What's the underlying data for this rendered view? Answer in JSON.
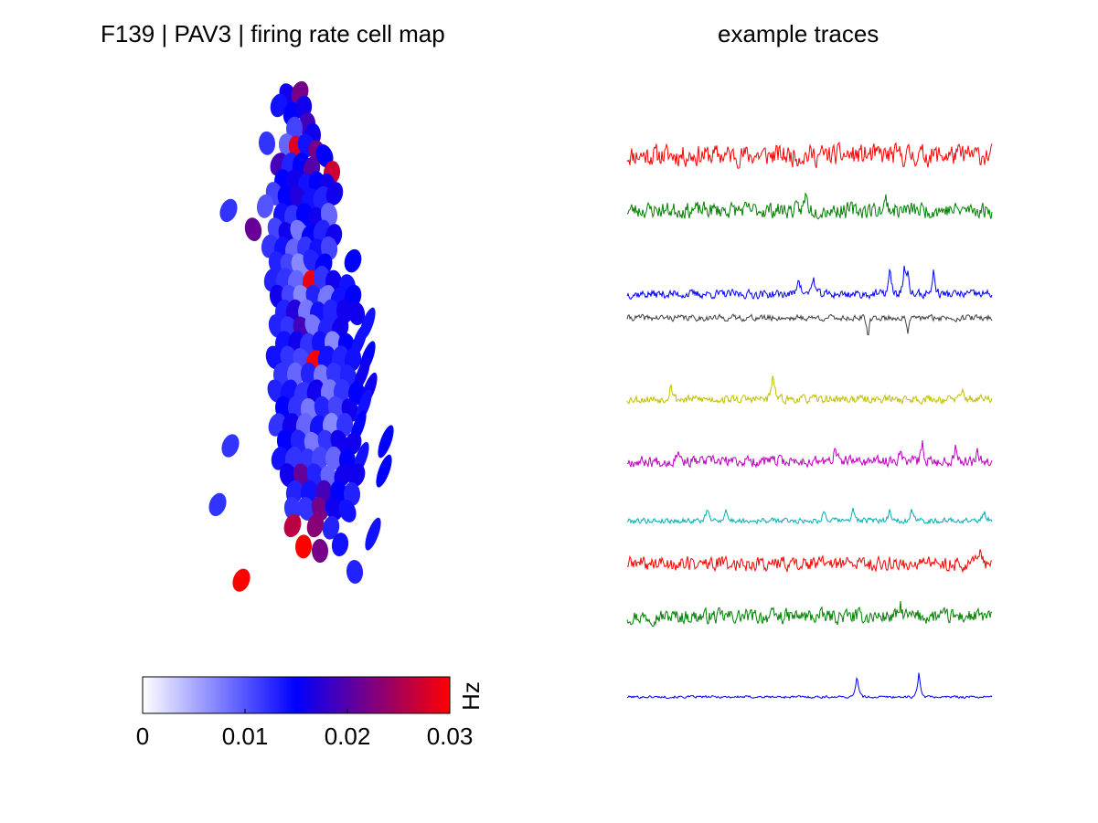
{
  "chart_data": [
    {
      "type": "heatmap",
      "title": "F139 | PAV3 | firing rate cell map",
      "colorbar": {
        "label": "Hz",
        "range": [
          0,
          0.03
        ],
        "ticks": [
          "0",
          "0.01",
          "0.02",
          "0.03"
        ],
        "colors": [
          "#ffffff",
          "#0000ff",
          "#ff0000"
        ]
      },
      "cells": [
        {
          "x": 0.15,
          "y": 0.03,
          "rate": 0.016
        },
        {
          "x": 0.28,
          "y": 0.02,
          "rate": 0.022
        },
        {
          "x": 0.05,
          "y": 0.08,
          "rate": 0.014
        },
        {
          "x": 0.19,
          "y": 0.12,
          "rate": 0.015
        },
        {
          "x": 0.32,
          "y": 0.09,
          "rate": 0.016
        },
        {
          "x": 0.36,
          "y": 0.17,
          "rate": 0.019
        },
        {
          "x": 0.22,
          "y": 0.19,
          "rate": 0.011
        },
        {
          "x": 0.42,
          "y": 0.22,
          "rate": 0.016
        },
        {
          "x": -0.08,
          "y": 0.26,
          "rate": 0.012
        },
        {
          "x": 0.14,
          "y": 0.27,
          "rate": 0.009
        },
        {
          "x": 0.25,
          "y": 0.28,
          "rate": 0.028
        },
        {
          "x": 0.35,
          "y": 0.27,
          "rate": 0.014
        },
        {
          "x": 0.47,
          "y": 0.3,
          "rate": 0.022
        },
        {
          "x": 0.55,
          "y": 0.32,
          "rate": 0.015
        },
        {
          "x": 0.05,
          "y": 0.36,
          "rate": 0.019
        },
        {
          "x": 0.17,
          "y": 0.36,
          "rate": 0.013
        },
        {
          "x": 0.29,
          "y": 0.36,
          "rate": 0.015
        },
        {
          "x": 0.41,
          "y": 0.38,
          "rate": 0.02
        },
        {
          "x": 0.63,
          "y": 0.4,
          "rate": 0.027
        },
        {
          "x": 0.09,
          "y": 0.44,
          "rate": 0.015
        },
        {
          "x": 0.22,
          "y": 0.44,
          "rate": 0.016
        },
        {
          "x": 0.35,
          "y": 0.46,
          "rate": 0.014
        },
        {
          "x": 0.47,
          "y": 0.45,
          "rate": 0.015
        },
        {
          "x": 0.58,
          "y": 0.46,
          "rate": 0.016
        },
        {
          "x": 0.0,
          "y": 0.5,
          "rate": 0.011
        },
        {
          "x": 0.13,
          "y": 0.52,
          "rate": 0.015
        },
        {
          "x": 0.26,
          "y": 0.52,
          "rate": 0.017
        },
        {
          "x": 0.39,
          "y": 0.53,
          "rate": 0.014
        },
        {
          "x": 0.52,
          "y": 0.52,
          "rate": 0.013
        },
        {
          "x": 0.66,
          "y": 0.5,
          "rate": 0.016
        },
        {
          "x": -0.5,
          "y": 0.58,
          "rate": 0.012
        },
        {
          "x": -0.1,
          "y": 0.56,
          "rate": 0.01
        },
        {
          "x": 0.08,
          "y": 0.6,
          "rate": 0.014
        },
        {
          "x": 0.2,
          "y": 0.61,
          "rate": 0.012
        },
        {
          "x": 0.33,
          "y": 0.6,
          "rate": 0.015
        },
        {
          "x": 0.46,
          "y": 0.62,
          "rate": 0.016
        },
        {
          "x": 0.6,
          "y": 0.6,
          "rate": 0.009
        },
        {
          "x": -0.23,
          "y": 0.67,
          "rate": 0.021
        },
        {
          "x": 0.02,
          "y": 0.67,
          "rate": 0.011
        },
        {
          "x": 0.14,
          "y": 0.69,
          "rate": 0.016
        },
        {
          "x": 0.27,
          "y": 0.68,
          "rate": 0.008
        },
        {
          "x": 0.39,
          "y": 0.7,
          "rate": 0.015
        },
        {
          "x": 0.52,
          "y": 0.68,
          "rate": 0.013
        },
        {
          "x": 0.65,
          "y": 0.7,
          "rate": 0.016
        },
        {
          "x": -0.05,
          "y": 0.75,
          "rate": 0.012
        },
        {
          "x": 0.09,
          "y": 0.76,
          "rate": 0.014
        },
        {
          "x": 0.21,
          "y": 0.77,
          "rate": 0.009
        },
        {
          "x": 0.34,
          "y": 0.76,
          "rate": 0.012
        },
        {
          "x": 0.47,
          "y": 0.77,
          "rate": 0.014
        },
        {
          "x": 0.6,
          "y": 0.76,
          "rate": 0.011
        },
        {
          "x": 0.03,
          "y": 0.83,
          "rate": 0.013
        },
        {
          "x": 0.16,
          "y": 0.84,
          "rate": 0.011
        },
        {
          "x": 0.28,
          "y": 0.84,
          "rate": 0.007
        },
        {
          "x": 0.41,
          "y": 0.82,
          "rate": 0.013
        },
        {
          "x": 0.54,
          "y": 0.84,
          "rate": 0.015
        },
        {
          "x": 0.86,
          "y": 0.82,
          "rate": 0.015
        },
        {
          "x": -0.02,
          "y": 0.91,
          "rate": 0.013
        },
        {
          "x": 0.11,
          "y": 0.91,
          "rate": 0.012
        },
        {
          "x": 0.24,
          "y": 0.92,
          "rate": 0.009
        },
        {
          "x": 0.4,
          "y": 0.92,
          "rate": 0.029
        },
        {
          "x": 0.52,
          "y": 0.9,
          "rate": 0.012
        },
        {
          "x": 0.65,
          "y": 0.92,
          "rate": 0.016
        },
        {
          "x": 0.8,
          "y": 0.94,
          "rate": 0.014
        },
        {
          "x": 0.04,
          "y": 0.99,
          "rate": 0.016
        },
        {
          "x": 0.17,
          "y": 0.99,
          "rate": 0.011
        },
        {
          "x": 0.3,
          "y": 0.99,
          "rate": 0.007
        },
        {
          "x": 0.44,
          "y": 0.99,
          "rate": 0.013
        },
        {
          "x": 0.57,
          "y": 0.99,
          "rate": 0.008
        },
        {
          "x": 0.71,
          "y": 1.0,
          "rate": 0.014
        },
        {
          "x": 0.86,
          "y": 0.99,
          "rate": 0.015
        },
        {
          "x": 0.1,
          "y": 1.06,
          "rate": 0.013
        },
        {
          "x": 0.22,
          "y": 1.06,
          "rate": 0.017
        },
        {
          "x": 0.35,
          "y": 1.06,
          "rate": 0.008
        },
        {
          "x": 0.48,
          "y": 1.07,
          "rate": 0.014
        },
        {
          "x": 0.62,
          "y": 1.06,
          "rate": 0.013
        },
        {
          "x": 0.77,
          "y": 1.06,
          "rate": 0.016
        },
        {
          "x": 0.9,
          "y": 1.07,
          "rate": 0.016
        },
        {
          "x": 0.03,
          "y": 1.13,
          "rate": 0.013
        },
        {
          "x": 0.16,
          "y": 1.14,
          "rate": 0.012
        },
        {
          "x": 0.3,
          "y": 1.14,
          "rate": 0.019
        },
        {
          "x": 0.43,
          "y": 1.13,
          "rate": 0.008
        },
        {
          "x": 0.57,
          "y": 1.14,
          "rate": 0.013
        },
        {
          "x": 0.72,
          "y": 1.14,
          "rate": 0.016
        },
        {
          "x": 1.02,
          "y": 1.12,
          "rate": 0.014
        },
        {
          "x": 0.1,
          "y": 1.21,
          "rate": 0.014
        },
        {
          "x": 0.24,
          "y": 1.21,
          "rate": 0.016
        },
        {
          "x": 0.37,
          "y": 1.22,
          "rate": 0.012
        },
        {
          "x": 0.5,
          "y": 1.21,
          "rate": 0.014
        },
        {
          "x": 0.64,
          "y": 1.21,
          "rate": 0.007
        },
        {
          "x": 0.79,
          "y": 1.22,
          "rate": 0.015
        },
        {
          "x": 0.93,
          "y": 1.2,
          "rate": 0.014
        },
        {
          "x": 0.0,
          "y": 1.28,
          "rate": 0.014
        },
        {
          "x": 0.16,
          "y": 1.28,
          "rate": 0.012
        },
        {
          "x": 0.3,
          "y": 1.29,
          "rate": 0.011
        },
        {
          "x": 0.44,
          "y": 1.3,
          "rate": 0.03
        },
        {
          "x": 0.57,
          "y": 1.28,
          "rate": 0.014
        },
        {
          "x": 0.72,
          "y": 1.28,
          "rate": 0.013
        },
        {
          "x": 0.86,
          "y": 1.29,
          "rate": 0.014
        },
        {
          "x": 1.02,
          "y": 1.28,
          "rate": 0.015
        },
        {
          "x": 0.08,
          "y": 1.36,
          "rate": 0.012
        },
        {
          "x": 0.23,
          "y": 1.36,
          "rate": 0.009
        },
        {
          "x": 0.38,
          "y": 1.36,
          "rate": 0.013
        },
        {
          "x": 0.52,
          "y": 1.37,
          "rate": 0.008
        },
        {
          "x": 0.66,
          "y": 1.36,
          "rate": 0.012
        },
        {
          "x": 0.81,
          "y": 1.37,
          "rate": 0.013
        },
        {
          "x": 0.96,
          "y": 1.36,
          "rate": 0.016
        },
        {
          "x": 0.02,
          "y": 1.44,
          "rate": 0.013
        },
        {
          "x": 0.16,
          "y": 1.44,
          "rate": 0.014
        },
        {
          "x": 0.31,
          "y": 1.45,
          "rate": 0.012
        },
        {
          "x": 0.45,
          "y": 1.44,
          "rate": 0.016
        },
        {
          "x": 0.6,
          "y": 1.44,
          "rate": 0.008
        },
        {
          "x": 0.74,
          "y": 1.44,
          "rate": 0.012
        },
        {
          "x": 0.9,
          "y": 1.45,
          "rate": 0.015
        },
        {
          "x": 1.04,
          "y": 1.43,
          "rate": 0.016
        },
        {
          "x": 0.1,
          "y": 1.52,
          "rate": 0.015
        },
        {
          "x": 0.24,
          "y": 1.52,
          "rate": 0.012
        },
        {
          "x": 0.38,
          "y": 1.53,
          "rate": 0.008
        },
        {
          "x": 0.53,
          "y": 1.52,
          "rate": 0.013
        },
        {
          "x": 0.68,
          "y": 1.52,
          "rate": 0.011
        },
        {
          "x": 0.83,
          "y": 1.53,
          "rate": 0.016
        },
        {
          "x": 0.98,
          "y": 1.51,
          "rate": 0.014
        },
        {
          "x": 0.03,
          "y": 1.6,
          "rate": 0.012
        },
        {
          "x": 0.18,
          "y": 1.6,
          "rate": 0.016
        },
        {
          "x": 0.33,
          "y": 1.6,
          "rate": 0.009
        },
        {
          "x": 0.48,
          "y": 1.61,
          "rate": 0.014
        },
        {
          "x": 0.62,
          "y": 1.6,
          "rate": 0.007
        },
        {
          "x": 0.77,
          "y": 1.6,
          "rate": 0.012
        },
        {
          "x": 0.92,
          "y": 1.61,
          "rate": 0.015
        },
        {
          "x": -0.48,
          "y": 1.7,
          "rate": 0.012
        },
        {
          "x": 0.12,
          "y": 1.68,
          "rate": 0.015
        },
        {
          "x": 0.27,
          "y": 1.68,
          "rate": 0.013
        },
        {
          "x": 0.42,
          "y": 1.69,
          "rate": 0.008
        },
        {
          "x": 0.57,
          "y": 1.68,
          "rate": 0.012
        },
        {
          "x": 0.71,
          "y": 1.68,
          "rate": 0.016
        },
        {
          "x": 0.86,
          "y": 1.69,
          "rate": 0.016
        },
        {
          "x": 1.22,
          "y": 1.68,
          "rate": 0.015
        },
        {
          "x": 0.06,
          "y": 1.76,
          "rate": 0.014
        },
        {
          "x": 0.21,
          "y": 1.76,
          "rate": 0.012
        },
        {
          "x": 0.36,
          "y": 1.77,
          "rate": 0.012
        },
        {
          "x": 0.5,
          "y": 1.76,
          "rate": 0.011
        },
        {
          "x": 0.65,
          "y": 1.76,
          "rate": 0.009
        },
        {
          "x": 0.8,
          "y": 1.77,
          "rate": 0.015
        },
        {
          "x": 0.95,
          "y": 1.76,
          "rate": 0.014
        },
        {
          "x": 0.15,
          "y": 1.84,
          "rate": 0.016
        },
        {
          "x": 0.3,
          "y": 1.84,
          "rate": 0.021
        },
        {
          "x": 0.45,
          "y": 1.84,
          "rate": 0.013
        },
        {
          "x": 0.6,
          "y": 1.85,
          "rate": 0.009
        },
        {
          "x": 0.75,
          "y": 1.84,
          "rate": 0.016
        },
        {
          "x": 0.9,
          "y": 1.84,
          "rate": 0.016
        },
        {
          "x": 1.2,
          "y": 1.82,
          "rate": 0.015
        },
        {
          "x": 0.22,
          "y": 1.92,
          "rate": 0.013
        },
        {
          "x": 0.38,
          "y": 1.92,
          "rate": 0.014
        },
        {
          "x": 0.54,
          "y": 1.92,
          "rate": 0.019
        },
        {
          "x": 0.7,
          "y": 1.92,
          "rate": 0.015
        },
        {
          "x": 0.85,
          "y": 1.93,
          "rate": 0.013
        },
        {
          "x": -0.62,
          "y": 1.98,
          "rate": 0.012
        },
        {
          "x": 0.2,
          "y": 2.0,
          "rate": 0.012
        },
        {
          "x": 0.35,
          "y": 2.0,
          "rate": 0.012
        },
        {
          "x": 0.5,
          "y": 2.0,
          "rate": 0.022
        },
        {
          "x": 0.65,
          "y": 2.0,
          "rate": 0.016
        },
        {
          "x": 0.8,
          "y": 2.01,
          "rate": 0.014
        },
        {
          "x": 0.2,
          "y": 2.08,
          "rate": 0.026
        },
        {
          "x": 0.45,
          "y": 2.08,
          "rate": 0.023
        },
        {
          "x": 0.62,
          "y": 2.09,
          "rate": 0.013
        },
        {
          "x": 0.72,
          "y": 2.17,
          "rate": 0.014
        },
        {
          "x": 1.08,
          "y": 2.12,
          "rate": 0.014
        },
        {
          "x": 0.32,
          "y": 2.18,
          "rate": 0.03
        },
        {
          "x": 0.5,
          "y": 2.2,
          "rate": 0.022
        },
        {
          "x": 0.88,
          "y": 2.3,
          "rate": 0.013
        },
        {
          "x": -0.36,
          "y": 2.34,
          "rate": 0.03
        }
      ]
    },
    {
      "type": "line",
      "title": "example traces",
      "series": [
        {
          "color": "#ff0000",
          "seed": 11,
          "noise": 0.75,
          "spikes": [],
          "dips": []
        },
        {
          "color": "#008000",
          "seed": 23,
          "noise": 0.6,
          "spikes": [
            {
              "pos": 0.49,
              "amp": 1.5
            },
            {
              "pos": 0.71,
              "amp": 1.0
            }
          ],
          "dips": []
        },
        {
          "color": "#0000ff",
          "seed": 37,
          "noise": 0.35,
          "spikes": [
            {
              "pos": 0.47,
              "amp": 2.0
            },
            {
              "pos": 0.51,
              "amp": 1.8
            },
            {
              "pos": 0.72,
              "amp": 2.4
            },
            {
              "pos": 0.76,
              "amp": 2.6
            },
            {
              "pos": 0.84,
              "amp": 2.2
            },
            {
              "pos": 0.77,
              "amp": 1.5
            }
          ],
          "dips": []
        },
        {
          "color": "#404040",
          "seed": 41,
          "noise": 0.3,
          "spikes": [],
          "dips": [
            {
              "pos": 0.66,
              "amp": 2.6
            },
            {
              "pos": 0.77,
              "amp": 2.0
            }
          ]
        },
        {
          "color": "#c0c000",
          "seed": 53,
          "noise": 0.45,
          "spikes": [
            {
              "pos": 0.12,
              "amp": 2.2
            },
            {
              "pos": 0.4,
              "amp": 3.3
            },
            {
              "pos": 0.92,
              "amp": 1.0
            }
          ],
          "dips": []
        },
        {
          "color": "#c000c0",
          "seed": 67,
          "noise": 0.45,
          "spikes": [
            {
              "pos": 0.14,
              "amp": 1.5
            },
            {
              "pos": 0.57,
              "amp": 1.2
            },
            {
              "pos": 0.75,
              "amp": 1.6
            },
            {
              "pos": 0.81,
              "amp": 1.7
            },
            {
              "pos": 0.9,
              "amp": 1.6
            },
            {
              "pos": 0.96,
              "amp": 1.5
            }
          ],
          "dips": []
        },
        {
          "color": "#00b0b0",
          "seed": 79,
          "noise": 0.3,
          "spikes": [
            {
              "pos": 0.22,
              "amp": 1.6
            },
            {
              "pos": 0.27,
              "amp": 1.5
            },
            {
              "pos": 0.54,
              "amp": 1.4
            },
            {
              "pos": 0.62,
              "amp": 1.5
            },
            {
              "pos": 0.72,
              "amp": 1.6
            },
            {
              "pos": 0.78,
              "amp": 1.5
            },
            {
              "pos": 0.98,
              "amp": 1.4
            }
          ],
          "dips": []
        },
        {
          "color": "#ff0000",
          "seed": 89,
          "noise": 0.6,
          "spikes": [
            {
              "pos": 0.97,
              "amp": 1.2
            }
          ],
          "dips": []
        },
        {
          "color": "#008000",
          "seed": 97,
          "noise": 0.6,
          "spikes": [
            {
              "pos": 0.75,
              "amp": 1.0
            }
          ],
          "dips": []
        },
        {
          "color": "#0000ff",
          "seed": 101,
          "noise": 0.12,
          "spikes": [
            {
              "pos": 0.63,
              "amp": 2.6
            },
            {
              "pos": 0.8,
              "amp": 2.8
            }
          ],
          "dips": []
        }
      ]
    }
  ]
}
